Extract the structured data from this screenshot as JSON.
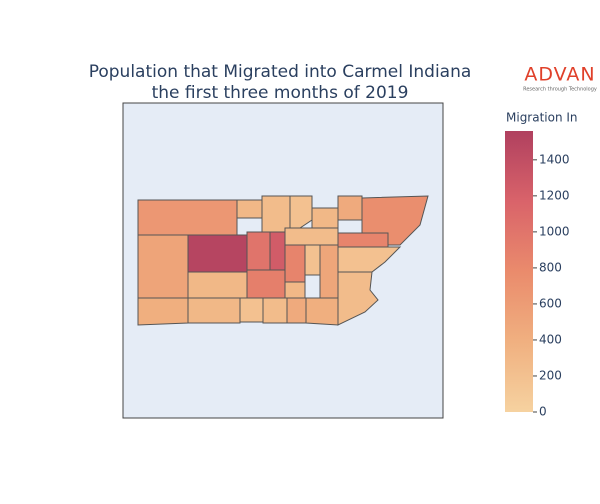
{
  "chart_data": {
    "type": "choropleth",
    "title": [
      "Population that Migrated into Carmel Indiana",
      "the first three months of 2019"
    ],
    "logo": {
      "name": "ADVAN",
      "tagline": "Research through Technology"
    },
    "colorbar_title": "Migration In",
    "values": [
      650,
      300,
      250,
      200,
      300,
      450,
      750,
      520,
      1500,
      1000,
      1250,
      850,
      250,
      850,
      200,
      300,
      900,
      200,
      500,
      250,
      400,
      300,
      200,
      250,
      450,
      400,
      300
    ],
    "zlim": [
      0,
      1560
    ],
    "zticks": [
      0,
      200,
      400,
      600,
      800,
      1000,
      1200,
      1400
    ],
    "colorscale": [
      "#f6d2a0",
      "#f0b080",
      "#ea8b6c",
      "#d9636a",
      "#b0405f"
    ]
  }
}
